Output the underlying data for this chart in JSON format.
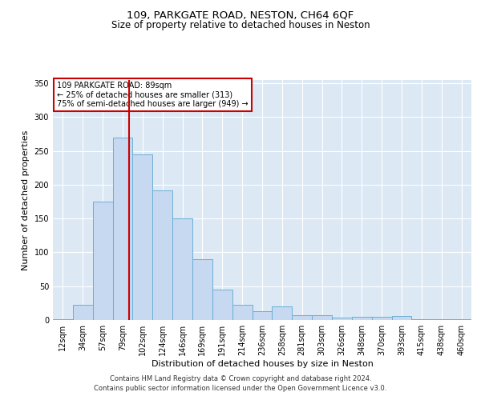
{
  "title1": "109, PARKGATE ROAD, NESTON, CH64 6QF",
  "title2": "Size of property relative to detached houses in Neston",
  "xlabel": "Distribution of detached houses by size in Neston",
  "ylabel": "Number of detached properties",
  "bar_labels": [
    "12sqm",
    "34sqm",
    "57sqm",
    "79sqm",
    "102sqm",
    "124sqm",
    "146sqm",
    "169sqm",
    "191sqm",
    "214sqm",
    "236sqm",
    "258sqm",
    "281sqm",
    "303sqm",
    "326sqm",
    "348sqm",
    "370sqm",
    "393sqm",
    "415sqm",
    "438sqm",
    "460sqm"
  ],
  "bar_values": [
    1,
    22,
    175,
    270,
    245,
    192,
    150,
    90,
    45,
    23,
    13,
    20,
    7,
    7,
    3,
    5,
    5,
    6,
    1,
    1,
    1
  ],
  "bar_color": "#c6d9f0",
  "bar_edge_color": "#6baed6",
  "vline_pos": 3.33,
  "vline_color": "#cc0000",
  "annotation_text": "109 PARKGATE ROAD: 89sqm\n← 25% of detached houses are smaller (313)\n75% of semi-detached houses are larger (949) →",
  "annotation_box_color": "white",
  "annotation_box_edge": "#cc0000",
  "ylim": [
    0,
    355
  ],
  "yticks": [
    0,
    50,
    100,
    150,
    200,
    250,
    300,
    350
  ],
  "background_color": "#dce9f5",
  "footer_line1": "Contains HM Land Registry data © Crown copyright and database right 2024.",
  "footer_line2": "Contains public sector information licensed under the Open Government Licence v3.0.",
  "grid_color": "#ffffff",
  "title_fontsize": 9.5,
  "subtitle_fontsize": 8.5,
  "tick_fontsize": 7,
  "label_fontsize": 8,
  "annotation_fontsize": 7,
  "footer_fontsize": 6
}
